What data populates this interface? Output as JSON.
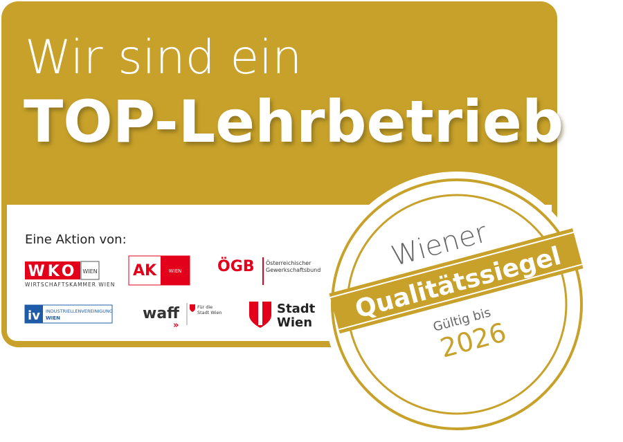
{
  "header": {
    "line1": "Wir sind ein",
    "line2": "TOP-Lehrbetrieb"
  },
  "partners": {
    "intro": "Eine Aktion von:",
    "wko": {
      "name": "WKO",
      "city": "WIEN",
      "full": "WIRTSCHAFTSKAMMER WIEN"
    },
    "ak": {
      "name": "AK",
      "city": "WIEN"
    },
    "oegb": {
      "name": "ÖGB",
      "line1": "Österreichischer",
      "line2": "Gewerkschaftsbund"
    },
    "iv": {
      "name": "iv",
      "line1": "INDUSTRIELLENVEREINIGUNG",
      "line2": "WIEN"
    },
    "waff": {
      "name": "waff",
      "line1": "Für die",
      "line2": "Stadt Wien"
    },
    "stadtwien": {
      "line1": "Stadt",
      "line2": "Wien"
    }
  },
  "seal": {
    "top": "Wiener",
    "band": "Qualitätssiegel",
    "valid": "Gültig bis",
    "year": "2026"
  }
}
